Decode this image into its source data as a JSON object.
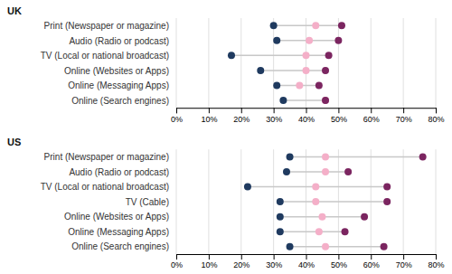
{
  "chart_data": [
    {
      "type": "dot",
      "orientation": "horizontal",
      "title": "UK",
      "categories": [
        "Print (Newspaper or magazine)",
        "Audio (Radio or podcast)",
        "TV (Local or national broadcast)",
        "Online (Websites or Apps)",
        "Online (Messaging Apps)",
        "Online (Search engines)"
      ],
      "series": [
        {
          "color": "#1f3a5f",
          "values": [
            0.3,
            0.31,
            0.17,
            0.26,
            0.31,
            0.33
          ]
        },
        {
          "color": "#f4afc8",
          "values": [
            0.43,
            0.41,
            0.4,
            0.4,
            0.38,
            0.46
          ]
        },
        {
          "color": "#7b2560",
          "values": [
            0.51,
            0.5,
            0.47,
            0.46,
            0.44,
            0.46
          ]
        }
      ],
      "xlim": [
        0.0,
        0.8
      ],
      "xticks": [
        {
          "value": 0.0,
          "label": "0%"
        },
        {
          "value": 0.1,
          "label": "10%"
        },
        {
          "value": 0.2,
          "label": "20%"
        },
        {
          "value": 0.3,
          "label": "30%"
        },
        {
          "value": 0.4,
          "label": "40%"
        },
        {
          "value": 0.5,
          "label": "50%"
        },
        {
          "value": 0.6,
          "label": "60%"
        },
        {
          "value": 0.7,
          "label": "70%"
        },
        {
          "value": 0.8,
          "label": "80%"
        }
      ],
      "grid": true
    },
    {
      "type": "dot",
      "orientation": "horizontal",
      "title": "US",
      "categories": [
        "Print (Newspaper or magazine)",
        "Audio (Radio or podcast)",
        "TV (Local or national broadcast)",
        "TV (Cable)",
        "Online (Websites or Apps)",
        "Online (Messaging Apps)",
        "Online (Search engines)"
      ],
      "series": [
        {
          "color": "#1f3a5f",
          "values": [
            0.35,
            0.34,
            0.22,
            0.32,
            0.32,
            0.32,
            0.35
          ]
        },
        {
          "color": "#f4afc8",
          "values": [
            0.46,
            0.46,
            0.43,
            0.43,
            0.45,
            0.44,
            0.46
          ]
        },
        {
          "color": "#7b2560",
          "values": [
            0.76,
            0.53,
            0.65,
            0.65,
            0.58,
            0.52,
            0.64
          ]
        }
      ],
      "xlim": [
        0.0,
        0.8
      ],
      "xticks": [
        {
          "value": 0.0,
          "label": "0%"
        },
        {
          "value": 0.1,
          "label": "10%"
        },
        {
          "value": 0.2,
          "label": "20%"
        },
        {
          "value": 0.3,
          "label": "30%"
        },
        {
          "value": 0.4,
          "label": "40%"
        },
        {
          "value": 0.5,
          "label": "50%"
        },
        {
          "value": 0.6,
          "label": "60%"
        },
        {
          "value": 0.7,
          "label": "70%"
        },
        {
          "value": 0.8,
          "label": "80%"
        }
      ],
      "grid": true
    }
  ]
}
